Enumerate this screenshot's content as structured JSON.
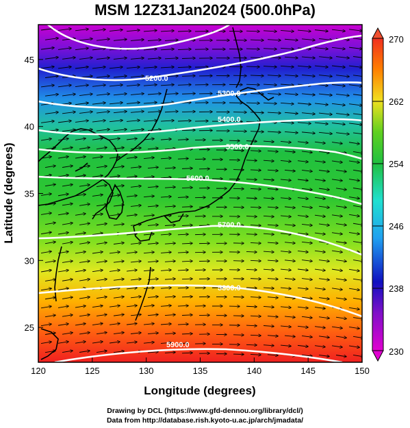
{
  "title": "MSM 12Z31Jan2024 (500.0hPa)",
  "axes": {
    "xlabel": "Longitude (degrees)",
    "ylabel": "Latitude  (degrees)",
    "x_ticks": [
      "120",
      "125",
      "130",
      "135",
      "140",
      "145",
      "150"
    ],
    "y_ticks": [
      "25",
      "30",
      "35",
      "40",
      "45"
    ],
    "xlim": [
      120,
      150
    ],
    "ylim": [
      22.4,
      47.6
    ]
  },
  "colorbar": {
    "min_label": "230",
    "max_label": "270",
    "tick_labels": [
      "262",
      "254",
      "246",
      "238"
    ],
    "colors": [
      "#d000d0",
      "#1010c0",
      "#20d0e0",
      "#20c040",
      "#80e020",
      "#f0e020",
      "#ff8000",
      "#f03020"
    ]
  },
  "contours": [
    {
      "label": "5200.0"
    },
    {
      "label": "5300.0"
    },
    {
      "label": "5400.0"
    },
    {
      "label": "5500.0"
    },
    {
      "label": "5600.0"
    },
    {
      "label": "5700.0"
    },
    {
      "label": "5800.0"
    },
    {
      "label": "5900.0"
    }
  ],
  "credits": {
    "line1": "Drawing by DCL (https://www.gfd-dennou.org/library/dcl/)",
    "line2": "Data from http://database.rish.kyoto-u.ac.jp/arch/jmadata/"
  }
}
